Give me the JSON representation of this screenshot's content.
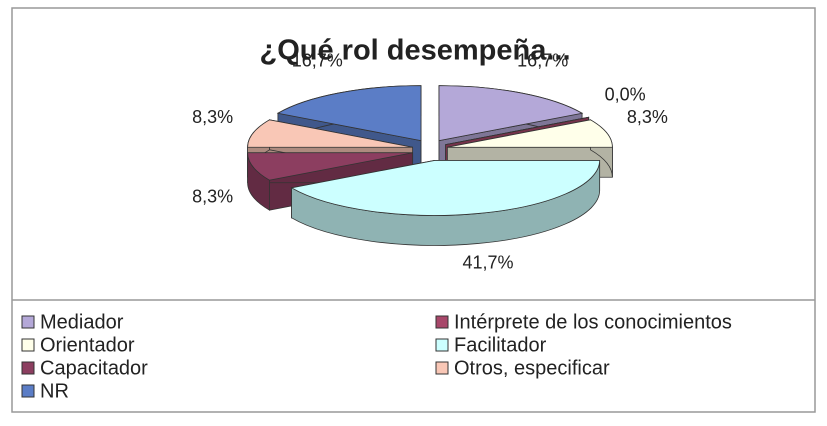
{
  "chart_data": {
    "type": "pie",
    "title": "¿Qué rol desempeña...",
    "categories": [
      "Mediador",
      "Intérprete de los conocimientos",
      "Orientador",
      "Facilitador",
      "Capacitador",
      "Otros, especificar",
      "NR"
    ],
    "values": [
      16.7,
      0.0,
      8.3,
      41.7,
      8.3,
      8.3,
      16.7
    ],
    "value_labels": [
      "16,7%",
      "0,0%",
      "8,3%",
      "41,7%",
      "8,3%",
      "8,3%",
      "16,7%"
    ],
    "colors": [
      "#b4a8d8",
      "#a8476a",
      "#ffffea",
      "#ccffff",
      "#8c3e60",
      "#f9c7b6",
      "#5b7dc6"
    ],
    "legend": "bottom"
  }
}
